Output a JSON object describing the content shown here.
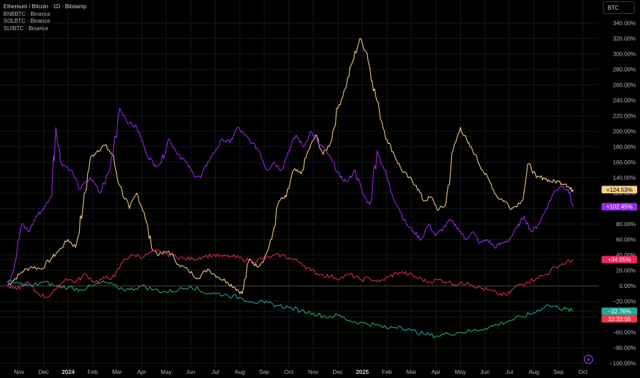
{
  "legend": {
    "title": "Ethereum / Bitcoin · 1D · Bitstamp",
    "items": [
      "BNBBTC · Binance",
      "SOLBTC · Binance",
      "SUIBTC · Binance"
    ]
  },
  "currency_button": "BTC",
  "timer": "10:33:55",
  "chart_data": {
    "type": "line",
    "ylim": [
      -100,
      350
    ],
    "y_ticks": [
      340,
      320,
      300,
      280,
      260,
      240,
      220,
      200,
      180,
      160,
      140,
      120,
      100,
      80,
      60,
      40,
      20,
      0,
      -20,
      -40,
      -60,
      -80,
      -100
    ],
    "y_tick_labels": [
      "340.00%",
      "320.00%",
      "300.00%",
      "280.00%",
      "260.00%",
      "240.00%",
      "220.00%",
      "200.00%",
      "180.00%",
      "160.00%",
      "140.00%",
      "120.00%",
      "100.00%",
      "80.00%",
      "60.00%",
      "40.00%",
      "20.00%",
      "0.00%",
      "−20.00%",
      "−40.00%",
      "−60.00%",
      "−80.00%",
      "−100.00%"
    ],
    "x_ticks": [
      {
        "label": "Nov",
        "t": 0.5,
        "bold": false
      },
      {
        "label": "Dec",
        "t": 1.5,
        "bold": false
      },
      {
        "label": "2024",
        "t": 2.5,
        "bold": true
      },
      {
        "label": "Feb",
        "t": 3.5,
        "bold": false
      },
      {
        "label": "Mar",
        "t": 4.5,
        "bold": false
      },
      {
        "label": "Apr",
        "t": 5.5,
        "bold": false
      },
      {
        "label": "May",
        "t": 6.5,
        "bold": false
      },
      {
        "label": "Jun",
        "t": 7.5,
        "bold": false
      },
      {
        "label": "Jul",
        "t": 8.5,
        "bold": false
      },
      {
        "label": "Aug",
        "t": 9.5,
        "bold": false
      },
      {
        "label": "Sep",
        "t": 10.5,
        "bold": false
      },
      {
        "label": "Oct",
        "t": 11.5,
        "bold": false
      },
      {
        "label": "Nov",
        "t": 12.5,
        "bold": false
      },
      {
        "label": "Dec",
        "t": 13.5,
        "bold": false
      },
      {
        "label": "2025",
        "t": 14.5,
        "bold": true
      },
      {
        "label": "Feb",
        "t": 15.5,
        "bold": false
      },
      {
        "label": "Mar",
        "t": 16.5,
        "bold": false
      },
      {
        "label": "Apr",
        "t": 17.5,
        "bold": false
      },
      {
        "label": "May",
        "t": 18.5,
        "bold": false
      },
      {
        "label": "Jun",
        "t": 19.5,
        "bold": false
      },
      {
        "label": "Jul",
        "t": 20.5,
        "bold": false
      },
      {
        "label": "Aug",
        "t": 21.5,
        "bold": false
      },
      {
        "label": "Sep",
        "t": 22.5,
        "bold": false
      },
      {
        "label": "Oct",
        "t": 23.5,
        "bold": false
      }
    ],
    "series": [
      {
        "name": "SOLBTC · Binance",
        "color": "#f9cf8b",
        "last_label": "+124.53%",
        "points": [
          [
            0,
            0
          ],
          [
            0.3,
            8
          ],
          [
            0.6,
            18
          ],
          [
            1.0,
            25
          ],
          [
            1.4,
            22
          ],
          [
            1.8,
            35
          ],
          [
            2.1,
            45
          ],
          [
            2.5,
            60
          ],
          [
            2.8,
            50
          ],
          [
            3.1,
            100
          ],
          [
            3.4,
            165
          ],
          [
            3.7,
            175
          ],
          [
            4.0,
            182
          ],
          [
            4.3,
            170
          ],
          [
            4.6,
            130
          ],
          [
            5.0,
            100
          ],
          [
            5.3,
            120
          ],
          [
            5.6,
            95
          ],
          [
            5.9,
            50
          ],
          [
            6.2,
            40
          ],
          [
            6.6,
            45
          ],
          [
            7.0,
            28
          ],
          [
            7.4,
            20
          ],
          [
            7.8,
            10
          ],
          [
            8.2,
            22
          ],
          [
            8.6,
            12
          ],
          [
            9.0,
            5
          ],
          [
            9.3,
            -2
          ],
          [
            9.6,
            -10
          ],
          [
            9.9,
            35
          ],
          [
            10.2,
            25
          ],
          [
            10.5,
            35
          ],
          [
            10.8,
            60
          ],
          [
            11.1,
            110
          ],
          [
            11.4,
            115
          ],
          [
            11.7,
            150
          ],
          [
            12.0,
            145
          ],
          [
            12.3,
            175
          ],
          [
            12.6,
            195
          ],
          [
            12.9,
            170
          ],
          [
            13.2,
            185
          ],
          [
            13.5,
            230
          ],
          [
            13.8,
            255
          ],
          [
            14.1,
            290
          ],
          [
            14.4,
            320
          ],
          [
            14.7,
            300
          ],
          [
            14.9,
            265
          ],
          [
            15.2,
            225
          ],
          [
            15.5,
            190
          ],
          [
            15.8,
            170
          ],
          [
            16.1,
            150
          ],
          [
            16.4,
            140
          ],
          [
            16.7,
            130
          ],
          [
            17.0,
            110
          ],
          [
            17.3,
            115
          ],
          [
            17.6,
            98
          ],
          [
            17.9,
            105
          ],
          [
            18.2,
            175
          ],
          [
            18.5,
            205
          ],
          [
            18.8,
            185
          ],
          [
            19.1,
            170
          ],
          [
            19.4,
            150
          ],
          [
            19.7,
            135
          ],
          [
            20.0,
            115
          ],
          [
            20.3,
            110
          ],
          [
            20.6,
            100
          ],
          [
            21.0,
            110
          ],
          [
            21.3,
            158
          ],
          [
            21.6,
            140
          ],
          [
            21.9,
            140
          ],
          [
            22.2,
            135
          ],
          [
            22.5,
            135
          ],
          [
            22.8,
            132
          ],
          [
            23.0,
            125
          ],
          [
            23.1,
            124.53
          ]
        ]
      },
      {
        "name": "Ethereum / Bitcoin · 1D · Bitstamp",
        "color": "#9c27f0",
        "last_label": "+102.45%",
        "points": [
          [
            0,
            0
          ],
          [
            0.3,
            25
          ],
          [
            0.6,
            80
          ],
          [
            0.9,
            70
          ],
          [
            1.2,
            90
          ],
          [
            1.5,
            100
          ],
          [
            1.8,
            115
          ],
          [
            2.0,
            205
          ],
          [
            2.2,
            160
          ],
          [
            2.6,
            150
          ],
          [
            3.0,
            125
          ],
          [
            3.4,
            140
          ],
          [
            3.8,
            120
          ],
          [
            4.2,
            150
          ],
          [
            4.6,
            230
          ],
          [
            5.0,
            210
          ],
          [
            5.3,
            205
          ],
          [
            5.6,
            180
          ],
          [
            6.0,
            155
          ],
          [
            6.3,
            160
          ],
          [
            6.6,
            190
          ],
          [
            7.0,
            170
          ],
          [
            7.3,
            160
          ],
          [
            7.6,
            145
          ],
          [
            7.9,
            140
          ],
          [
            8.2,
            160
          ],
          [
            8.5,
            175
          ],
          [
            8.8,
            190
          ],
          [
            9.1,
            185
          ],
          [
            9.4,
            205
          ],
          [
            9.7,
            195
          ],
          [
            10.0,
            185
          ],
          [
            10.3,
            175
          ],
          [
            10.6,
            150
          ],
          [
            10.9,
            160
          ],
          [
            11.2,
            150
          ],
          [
            11.5,
            175
          ],
          [
            11.8,
            195
          ],
          [
            12.1,
            180
          ],
          [
            12.4,
            200
          ],
          [
            12.7,
            185
          ],
          [
            13.0,
            175
          ],
          [
            13.3,
            160
          ],
          [
            13.6,
            140
          ],
          [
            13.9,
            135
          ],
          [
            14.2,
            150
          ],
          [
            14.5,
            120
          ],
          [
            14.8,
            105
          ],
          [
            15.1,
            175
          ],
          [
            15.4,
            150
          ],
          [
            15.7,
            120
          ],
          [
            16.0,
            100
          ],
          [
            16.3,
            80
          ],
          [
            16.6,
            70
          ],
          [
            16.9,
            60
          ],
          [
            17.2,
            80
          ],
          [
            17.5,
            65
          ],
          [
            17.8,
            75
          ],
          [
            18.1,
            85
          ],
          [
            18.4,
            75
          ],
          [
            18.7,
            60
          ],
          [
            19.0,
            70
          ],
          [
            19.3,
            55
          ],
          [
            19.6,
            60
          ],
          [
            19.9,
            50
          ],
          [
            20.2,
            55
          ],
          [
            20.5,
            60
          ],
          [
            20.8,
            75
          ],
          [
            21.1,
            90
          ],
          [
            21.4,
            70
          ],
          [
            21.7,
            80
          ],
          [
            22.0,
            100
          ],
          [
            22.3,
            120
          ],
          [
            22.6,
            130
          ],
          [
            22.9,
            125
          ],
          [
            23.1,
            102.45
          ]
        ]
      },
      {
        "name": "BNBBTC · Binance",
        "color": "#e0285a",
        "last_label": "+34.05%",
        "points": [
          [
            0,
            0
          ],
          [
            0.4,
            -5
          ],
          [
            0.8,
            5
          ],
          [
            1.2,
            -8
          ],
          [
            1.6,
            -15
          ],
          [
            2.0,
            -5
          ],
          [
            2.4,
            10
          ],
          [
            2.8,
            5
          ],
          [
            3.2,
            15
          ],
          [
            3.6,
            5
          ],
          [
            4.0,
            10
          ],
          [
            4.4,
            12
          ],
          [
            4.8,
            35
          ],
          [
            5.2,
            40
          ],
          [
            5.6,
            38
          ],
          [
            6.0,
            45
          ],
          [
            6.4,
            42
          ],
          [
            6.8,
            40
          ],
          [
            7.2,
            35
          ],
          [
            7.6,
            35
          ],
          [
            8.0,
            38
          ],
          [
            8.4,
            40
          ],
          [
            8.8,
            38
          ],
          [
            9.2,
            38
          ],
          [
            9.6,
            35
          ],
          [
            10.0,
            32
          ],
          [
            10.4,
            35
          ],
          [
            10.8,
            38
          ],
          [
            11.2,
            40
          ],
          [
            11.6,
            35
          ],
          [
            12.0,
            30
          ],
          [
            12.4,
            20
          ],
          [
            12.8,
            15
          ],
          [
            13.2,
            12
          ],
          [
            13.6,
            10
          ],
          [
            14.0,
            15
          ],
          [
            14.4,
            8
          ],
          [
            14.8,
            10
          ],
          [
            15.2,
            5
          ],
          [
            15.6,
            12
          ],
          [
            16.0,
            18
          ],
          [
            16.4,
            15
          ],
          [
            16.8,
            10
          ],
          [
            17.2,
            5
          ],
          [
            17.6,
            8
          ],
          [
            18.0,
            5
          ],
          [
            18.4,
            2
          ],
          [
            18.8,
            5
          ],
          [
            19.2,
            -2
          ],
          [
            19.6,
            -5
          ],
          [
            20.0,
            -10
          ],
          [
            20.4,
            -12
          ],
          [
            20.8,
            0
          ],
          [
            21.2,
            5
          ],
          [
            21.6,
            10
          ],
          [
            22.0,
            15
          ],
          [
            22.4,
            25
          ],
          [
            22.8,
            30
          ],
          [
            23.1,
            34.05
          ]
        ]
      },
      {
        "name": "SUIBTC · Binance",
        "color": "#26a69a",
        "last_label": "−32.76%",
        "points": [
          [
            0,
            5
          ],
          [
            0.5,
            3
          ],
          [
            1.0,
            0
          ],
          [
            1.5,
            5
          ],
          [
            2.0,
            0
          ],
          [
            2.5,
            -2
          ],
          [
            3.0,
            -5
          ],
          [
            3.5,
            0
          ],
          [
            4.0,
            5
          ],
          [
            4.5,
            -2
          ],
          [
            5.0,
            -5
          ],
          [
            5.5,
            0
          ],
          [
            6.0,
            -5
          ],
          [
            6.5,
            -8
          ],
          [
            7.0,
            -5
          ],
          [
            7.5,
            0
          ],
          [
            8.0,
            -8
          ],
          [
            8.5,
            -10
          ],
          [
            9.0,
            -12
          ],
          [
            9.5,
            -15
          ],
          [
            10.0,
            -20
          ],
          [
            10.5,
            -22
          ],
          [
            11.0,
            -25
          ],
          [
            11.5,
            -28
          ],
          [
            12.0,
            -32
          ],
          [
            12.5,
            -35
          ],
          [
            13.0,
            -40
          ],
          [
            13.5,
            -38
          ],
          [
            14.0,
            -45
          ],
          [
            14.5,
            -48
          ],
          [
            15.0,
            -50
          ],
          [
            15.5,
            -55
          ],
          [
            16.0,
            -52
          ],
          [
            16.5,
            -58
          ],
          [
            17.0,
            -62
          ],
          [
            17.5,
            -65
          ],
          [
            18.0,
            -62
          ],
          [
            18.5,
            -60
          ],
          [
            19.0,
            -58
          ],
          [
            19.5,
            -55
          ],
          [
            20.0,
            -50
          ],
          [
            20.5,
            -45
          ],
          [
            21.0,
            -40
          ],
          [
            21.5,
            -35
          ],
          [
            22.0,
            -25
          ],
          [
            22.5,
            -28
          ],
          [
            22.8,
            -30
          ],
          [
            23.1,
            -32.76
          ]
        ]
      }
    ]
  }
}
